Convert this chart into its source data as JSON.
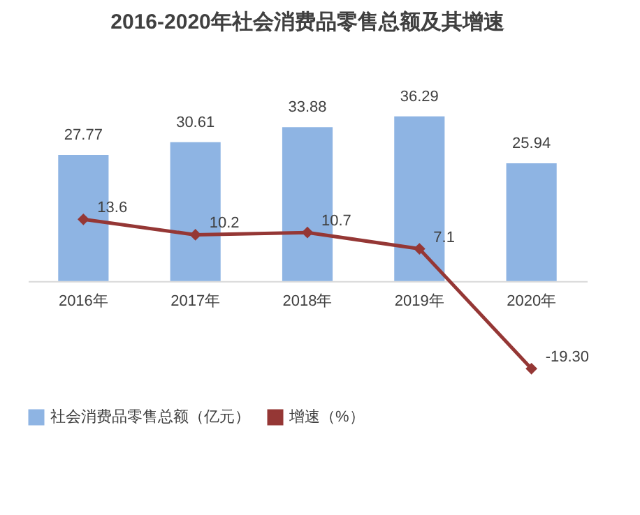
{
  "chart_data": {
    "type": "bar",
    "title": "2016-2020年社会消费品零售总额及其增速",
    "categories": [
      "2016年",
      "2017年",
      "2018年",
      "2019年",
      "2020年"
    ],
    "series": [
      {
        "name": "社会消费品零售总额（亿元）",
        "color": "#8eb4e3",
        "values": [
          27.77,
          30.61,
          33.88,
          36.29,
          25.94
        ],
        "value_labels": [
          "27.77",
          "30.61",
          "33.88",
          "36.29",
          "25.94"
        ]
      },
      {
        "name": "增速（%）",
        "type": "line",
        "color": "#953735",
        "marker": "diamond",
        "line_style": "solid",
        "values": [
          13.6,
          10.2,
          10.7,
          7.1,
          -19.3
        ],
        "value_labels": [
          "13.6",
          "10.2",
          "10.7",
          "7.1",
          "-19.30"
        ]
      }
    ],
    "tick_labels": "x",
    "legend": "bottom"
  }
}
